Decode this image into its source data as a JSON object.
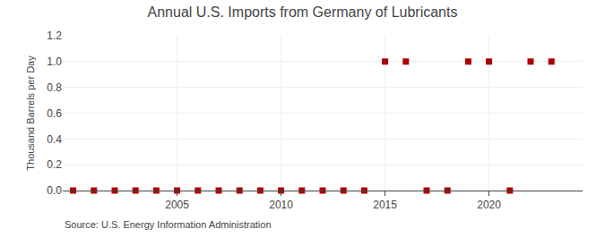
{
  "chart_data": {
    "type": "scatter",
    "title": "Annual U.S. Imports from Germany of Lubricants",
    "ylabel": "Thousand Barrels per Day",
    "source": "Source: U.S. Energy Information Administration",
    "x": [
      2000,
      2001,
      2002,
      2003,
      2004,
      2005,
      2006,
      2007,
      2008,
      2009,
      2010,
      2011,
      2012,
      2013,
      2014,
      2015,
      2016,
      2017,
      2018,
      2019,
      2020,
      2021,
      2022,
      2023
    ],
    "values": [
      0,
      0,
      0,
      0,
      0,
      0,
      0,
      0,
      0,
      0,
      0,
      0,
      0,
      0,
      0,
      1,
      1,
      0,
      0,
      1,
      1,
      0,
      1,
      1
    ],
    "color": "#aa0000",
    "marker": "square",
    "xlim": [
      1999.5,
      2024.5
    ],
    "xticks": [
      2005,
      2010,
      2015,
      2020
    ],
    "ylim": [
      0,
      1.2
    ],
    "yticks": [
      {
        "value": 0,
        "label": "0.0"
      },
      0.2,
      0.4,
      0.6,
      0.8,
      {
        "value": 1,
        "label": "1.0"
      },
      1.2
    ],
    "grid": true
  }
}
